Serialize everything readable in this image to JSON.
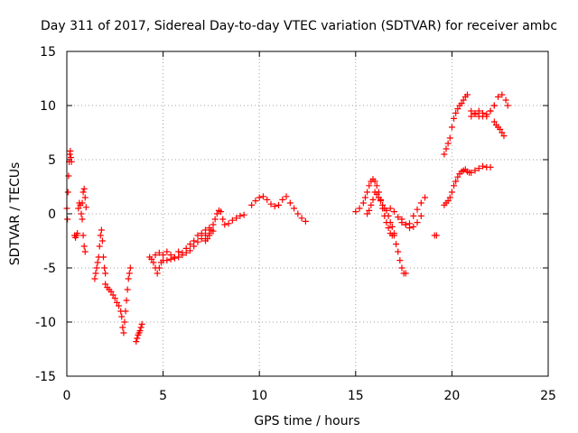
{
  "chart_data": {
    "type": "scatter",
    "title": "Day 311 of 2017, Sidereal Day-to-day VTEC variation (SDTVAR) for receiver ambc",
    "xlabel": "GPS time / hours",
    "ylabel": "SDTVAR / TECUs",
    "xlim": [
      0,
      25
    ],
    "ylim": [
      -15,
      15
    ],
    "xticks": [
      0,
      5,
      10,
      15,
      20,
      25
    ],
    "yticks": [
      -15,
      -10,
      -5,
      0,
      5,
      10,
      15
    ],
    "grid": true,
    "marker": "+",
    "color": "#ff0000",
    "series": [
      {
        "name": "s1",
        "x": [
          0.0,
          0.03,
          0.06,
          0.09,
          0.12,
          0.15,
          0.18,
          0.21,
          0.24
        ],
        "y": [
          0.5,
          -0.5,
          2.0,
          3.5,
          4.8,
          5.5,
          5.8,
          5.2,
          4.8
        ]
      },
      {
        "name": "s2",
        "x": [
          0.4,
          0.45,
          0.5,
          0.55,
          0.6,
          0.65,
          0.7,
          0.75,
          0.8,
          0.85,
          0.9,
          0.95
        ],
        "y": [
          -2.0,
          -2.2,
          -2.0,
          -1.8,
          0.5,
          1.0,
          0.8,
          0.0,
          -0.5,
          -2.0,
          -3.0,
          -3.5
        ]
      },
      {
        "name": "s3",
        "x": [
          0.8,
          0.85,
          0.9,
          0.95,
          1.0
        ],
        "y": [
          1.0,
          2.0,
          2.3,
          1.5,
          0.6
        ]
      },
      {
        "name": "s4",
        "x": [
          1.45,
          1.5,
          1.55,
          1.6,
          1.65,
          1.7,
          1.75,
          1.8,
          1.85,
          1.9,
          1.95,
          2.0
        ],
        "y": [
          -6.0,
          -5.5,
          -5.0,
          -4.5,
          -4.0,
          -3.0,
          -2.0,
          -1.5,
          -2.5,
          -4.0,
          -5.0,
          -5.5
        ]
      },
      {
        "name": "s5",
        "x": [
          2.0,
          2.1,
          2.2,
          2.3,
          2.4,
          2.5,
          2.6,
          2.7,
          2.8,
          2.85,
          2.9,
          2.95,
          3.0,
          3.05,
          3.1,
          3.15,
          3.2,
          3.25,
          3.3
        ],
        "y": [
          -6.5,
          -6.8,
          -7.0,
          -7.2,
          -7.5,
          -7.8,
          -8.2,
          -8.5,
          -9.0,
          -9.5,
          -10.5,
          -11.0,
          -10.0,
          -9.0,
          -8.0,
          -7.0,
          -6.0,
          -5.5,
          -5.0
        ]
      },
      {
        "name": "s6",
        "x": [
          3.6,
          3.65,
          3.7,
          3.75,
          3.8,
          3.85,
          3.9
        ],
        "y": [
          -11.8,
          -11.5,
          -11.2,
          -11.0,
          -10.8,
          -10.5,
          -10.2
        ]
      },
      {
        "name": "s7",
        "x": [
          4.3,
          4.4,
          4.5,
          4.6,
          4.7,
          4.8,
          4.9,
          5.0,
          5.2,
          5.4,
          5.6,
          5.8,
          6.0,
          6.2,
          6.4,
          6.6,
          6.8,
          7.0,
          7.2,
          7.4,
          7.6
        ],
        "y": [
          -4.0,
          -4.2,
          -4.5,
          -5.0,
          -5.5,
          -5.0,
          -4.5,
          -4.3,
          -4.3,
          -4.2,
          -4.1,
          -4.0,
          -3.8,
          -3.6,
          -3.4,
          -3.0,
          -2.6,
          -2.3,
          -2.0,
          -1.8,
          -1.6
        ]
      },
      {
        "name": "s8",
        "x": [
          4.6,
          4.8,
          5.0,
          5.2,
          5.4,
          5.6,
          5.8,
          6.0,
          6.2,
          6.4,
          6.6,
          6.8,
          7.0,
          7.2,
          7.4
        ],
        "y": [
          -3.8,
          -3.6,
          -3.8,
          -3.5,
          -3.8,
          -4.0,
          -3.5,
          -3.6,
          -3.2,
          -2.8,
          -2.5,
          -2.0,
          -1.8,
          -1.5,
          -1.3
        ]
      },
      {
        "name": "s9",
        "x": [
          7.2,
          7.3,
          7.4,
          7.5,
          7.6,
          7.7,
          7.8,
          7.9,
          8.0,
          8.1,
          8.2,
          8.4,
          8.6,
          8.8,
          9.0,
          9.2
        ],
        "y": [
          -2.5,
          -2.3,
          -2.0,
          -1.5,
          -1.0,
          -0.5,
          0.0,
          0.3,
          0.2,
          -0.5,
          -1.0,
          -0.9,
          -0.6,
          -0.4,
          -0.2,
          -0.1
        ]
      },
      {
        "name": "s10",
        "x": [
          9.6,
          9.8,
          10.0,
          10.2,
          10.4,
          10.6,
          10.8,
          11.0,
          11.2,
          11.4,
          11.6,
          11.8,
          12.0,
          12.2,
          12.4
        ],
        "y": [
          0.8,
          1.2,
          1.5,
          1.6,
          1.3,
          0.9,
          0.7,
          0.8,
          1.3,
          1.6,
          1.0,
          0.5,
          0.0,
          -0.4,
          -0.7
        ]
      },
      {
        "name": "s11",
        "x": [
          15.0,
          15.2,
          15.4,
          15.5,
          15.6,
          15.7,
          15.8,
          15.9,
          16.0,
          16.1,
          16.2,
          16.3,
          16.4,
          16.5,
          16.6,
          16.7,
          16.8,
          16.9,
          17.0
        ],
        "y": [
          0.2,
          0.5,
          1.0,
          1.5,
          2.0,
          2.6,
          3.0,
          3.2,
          3.0,
          2.6,
          2.0,
          1.3,
          0.5,
          -0.2,
          -0.8,
          -1.3,
          -1.8,
          -2.0,
          -1.8
        ]
      },
      {
        "name": "s12",
        "x": [
          15.6,
          15.7,
          15.8,
          15.9,
          16.0,
          16.1,
          16.2,
          16.3,
          16.4,
          16.5,
          16.6,
          16.7,
          16.8,
          16.9,
          17.0,
          17.1,
          17.2,
          17.3,
          17.4,
          17.5,
          17.6
        ],
        "y": [
          0.0,
          0.3,
          0.8,
          1.3,
          2.0,
          1.8,
          1.5,
          1.2,
          0.8,
          0.5,
          0.3,
          -0.2,
          -0.8,
          -1.2,
          -2.0,
          -2.8,
          -3.5,
          -4.3,
          -5.0,
          -5.5,
          -5.5
        ]
      },
      {
        "name": "s13",
        "x": [
          16.8,
          17.0,
          17.2,
          17.4,
          17.6,
          17.8,
          18.0,
          18.2,
          18.4,
          18.6
        ],
        "y": [
          0.5,
          0.2,
          -0.3,
          -0.8,
          -1.0,
          -0.9,
          -0.2,
          0.4,
          1.0,
          1.5
        ]
      },
      {
        "name": "s14",
        "x": [
          17.4,
          17.6,
          17.8,
          18.0,
          18.2,
          18.4
        ],
        "y": [
          -0.5,
          -1.0,
          -1.3,
          -1.2,
          -0.8,
          -0.2
        ]
      },
      {
        "name": "s15",
        "x": [
          19.1,
          19.2
        ],
        "y": [
          -2.0,
          -2.0
        ]
      },
      {
        "name": "s16",
        "x": [
          19.6,
          19.7,
          19.8,
          19.9,
          20.0,
          20.1,
          20.2,
          20.3,
          20.4,
          20.5,
          20.6,
          20.7,
          20.8,
          20.9,
          21.0,
          21.2,
          21.4,
          21.6,
          21.8,
          22.0
        ],
        "y": [
          0.8,
          1.0,
          1.2,
          1.5,
          2.0,
          2.6,
          3.0,
          3.4,
          3.7,
          3.9,
          4.0,
          4.1,
          3.9,
          3.8,
          3.8,
          4.0,
          4.2,
          4.4,
          4.3,
          4.3
        ]
      },
      {
        "name": "s17",
        "x": [
          19.6,
          19.7,
          19.8,
          19.9,
          20.0,
          20.1,
          20.2,
          20.3,
          20.4,
          20.5,
          20.6,
          20.7,
          20.8,
          21.0,
          21.2,
          21.4,
          21.6,
          21.8,
          22.0,
          22.2
        ],
        "y": [
          5.5,
          6.0,
          6.5,
          7.0,
          8.0,
          8.8,
          9.3,
          9.7,
          10.0,
          10.2,
          10.5,
          10.8,
          11.0,
          9.5,
          9.2,
          9.0,
          9.0,
          9.2,
          9.5,
          10.0
        ]
      },
      {
        "name": "s18",
        "x": [
          21.0,
          21.2,
          21.4,
          21.6,
          21.8,
          22.0,
          22.2,
          22.4,
          22.6,
          22.8,
          22.9
        ],
        "y": [
          9.0,
          9.3,
          9.5,
          9.3,
          9.0,
          9.5,
          10.0,
          10.8,
          11.0,
          10.5,
          10.0
        ]
      },
      {
        "name": "s19",
        "x": [
          22.2,
          22.3,
          22.4,
          22.5,
          22.6,
          22.7
        ],
        "y": [
          8.5,
          8.2,
          8.0,
          7.8,
          7.5,
          7.2
        ]
      }
    ]
  }
}
